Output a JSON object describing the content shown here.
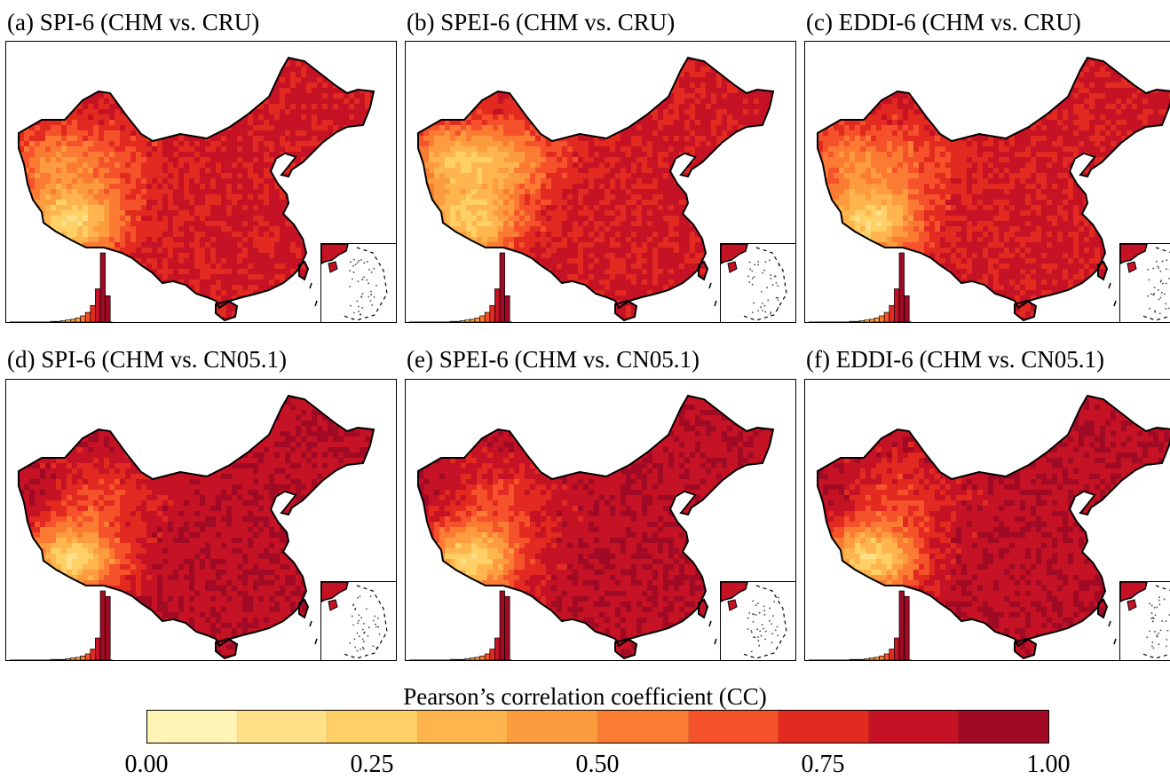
{
  "panels": [
    {
      "title": "(a) SPI-6 (CHM vs. CRU)",
      "variant": "a"
    },
    {
      "title": "(b) SPEI-6 (CHM vs. CRU)",
      "variant": "b"
    },
    {
      "title": "(c) EDDI-6 (CHM vs. CRU)",
      "variant": "a"
    },
    {
      "title": "(d) SPI-6 (CHM vs. CN05.1)",
      "variant": "d"
    },
    {
      "title": "(e) SPEI-6 (CHM vs. CN05.1)",
      "variant": "d"
    },
    {
      "title": "(f) EDDI-6 (CHM vs. CN05.1)",
      "variant": "d"
    }
  ],
  "colorbar": {
    "title": "Pearson’s correlation coefficient (CC)",
    "ticks": [
      "0.00",
      "0.25",
      "0.50",
      "0.75",
      "1.00"
    ],
    "range": [
      0,
      1
    ],
    "colors": [
      "#fff3b5",
      "#ffe088",
      "#fed066",
      "#feb54e",
      "#fd9c3f",
      "#fc7b33",
      "#f5512a",
      "#e22a21",
      "#c51224",
      "#a00a25"
    ]
  },
  "histograms": {
    "row1": [
      0.01,
      0.01,
      0.02,
      0.03,
      0.04,
      0.06,
      0.09,
      0.14,
      0.24,
      0.48,
      1.0,
      0.38
    ],
    "row2": [
      0.01,
      0.01,
      0.01,
      0.02,
      0.03,
      0.04,
      0.06,
      0.09,
      0.16,
      0.32,
      1.0,
      0.92
    ]
  }
}
